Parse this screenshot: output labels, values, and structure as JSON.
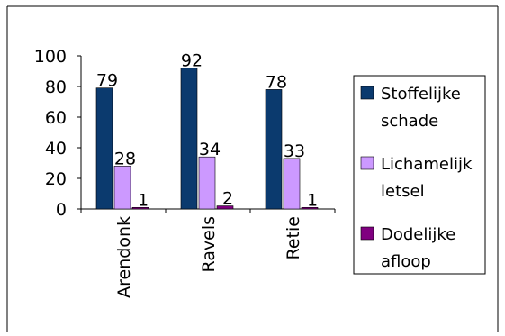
{
  "chart_data": {
    "type": "bar",
    "title": "",
    "xlabel": "",
    "ylabel": "",
    "categories": [
      "Arendonk",
      "Ravels",
      "Retie"
    ],
    "series": [
      {
        "name": "Stoffelijke schade",
        "values": [
          79,
          92,
          78
        ],
        "color": "#0b3a6e"
      },
      {
        "name": "Lichamelijk letsel",
        "values": [
          28,
          34,
          33
        ],
        "color": "#cc99ff"
      },
      {
        "name": "Dodelijke afloop",
        "values": [
          1,
          2,
          1
        ],
        "color": "#800080"
      }
    ],
    "ylim": [
      0,
      100
    ],
    "yticks": [
      0,
      20,
      40,
      60,
      80,
      100
    ],
    "grid": false,
    "legend_position": "right",
    "data_labels": true
  }
}
